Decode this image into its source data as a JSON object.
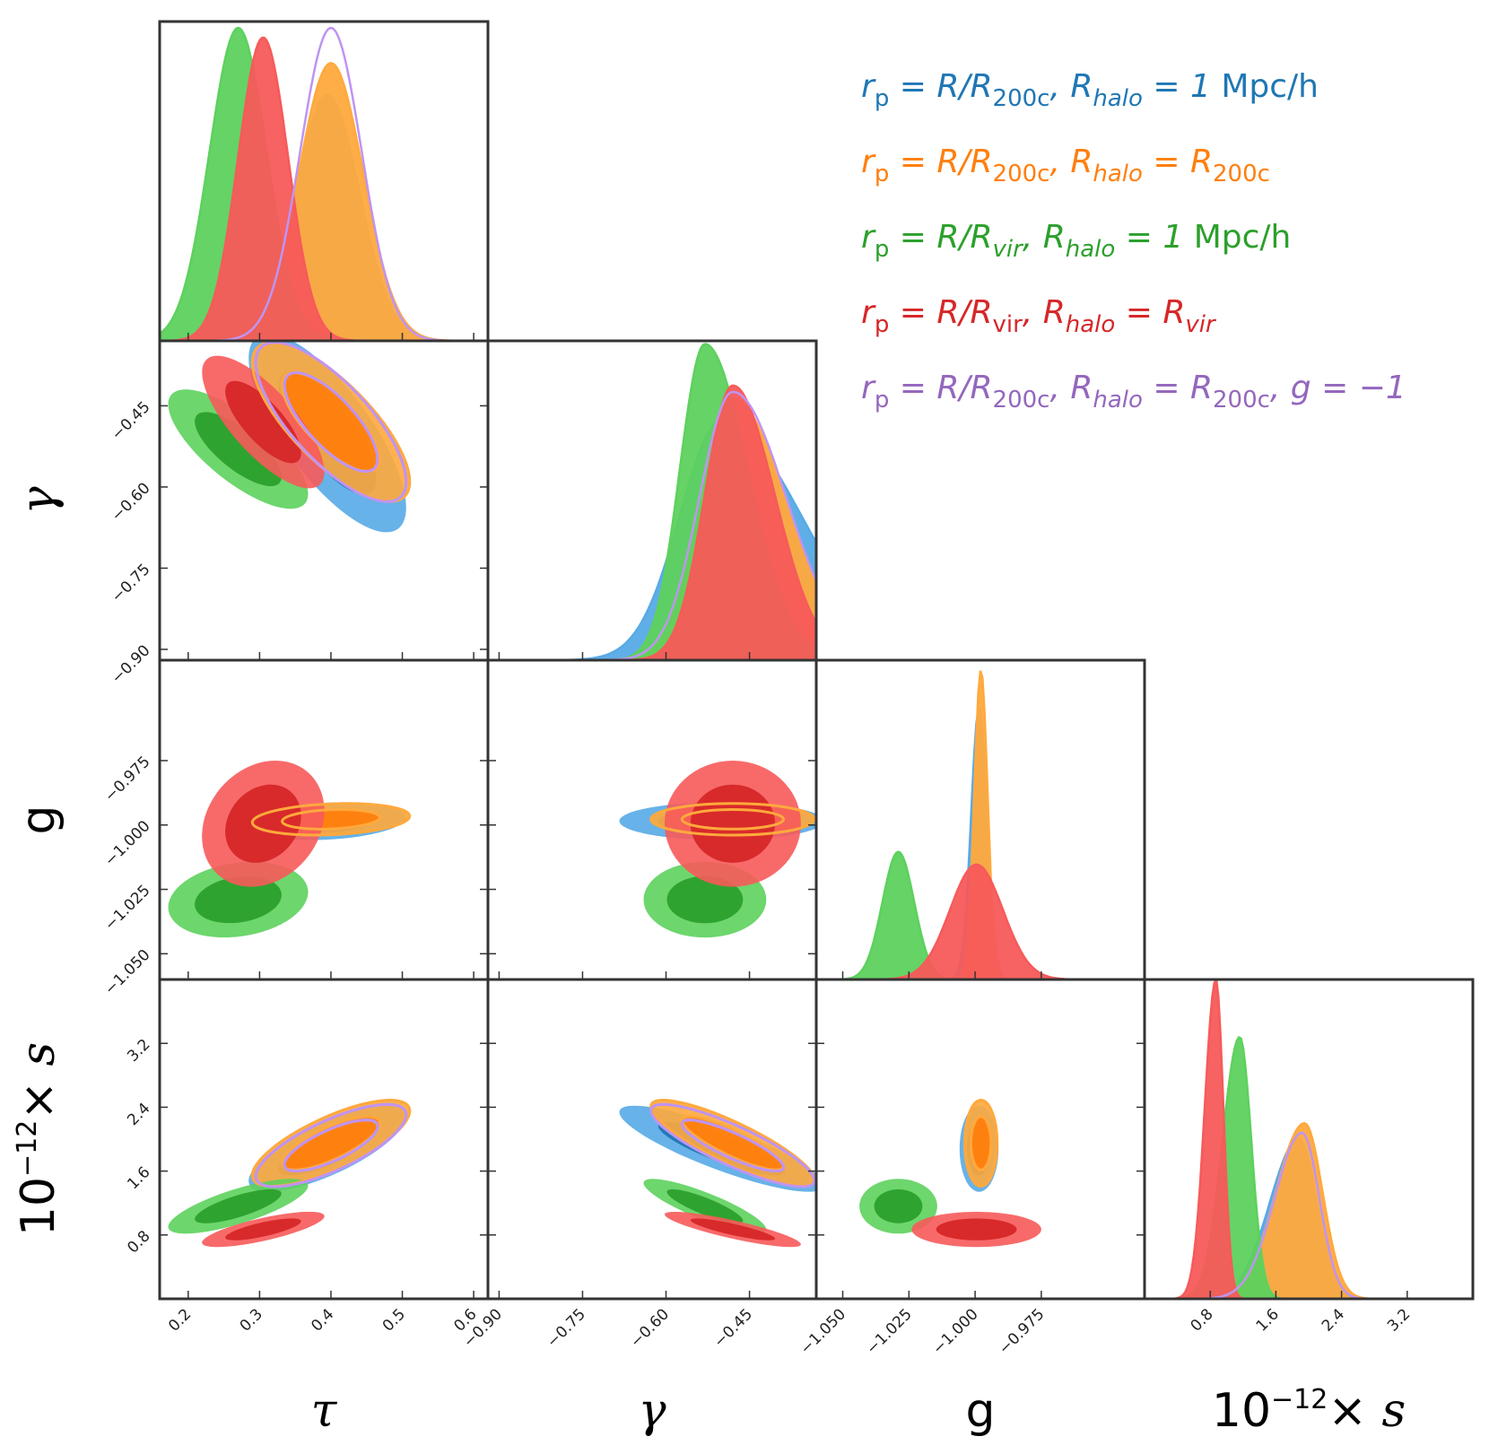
{
  "chart_data": {
    "type": "corner",
    "params": [
      {
        "key": "tau",
        "label": "τ",
        "range": [
          0.16,
          0.62
        ],
        "ticks": [
          0.2,
          0.3,
          0.4,
          0.5,
          0.6
        ],
        "tick_labels": [
          "0.2",
          "0.3",
          "0.4",
          "0.5",
          "0.6"
        ]
      },
      {
        "key": "gamma",
        "label": "γ",
        "range": [
          -0.92,
          -0.33
        ],
        "ticks": [
          -0.9,
          -0.75,
          -0.6,
          -0.45
        ],
        "tick_labels": [
          "−0.90",
          "−0.75",
          "−0.60",
          "−0.45"
        ]
      },
      {
        "key": "g",
        "label": "g",
        "range": [
          -1.06,
          -0.936
        ],
        "ticks": [
          -1.05,
          -1.025,
          -1.0,
          -0.975
        ],
        "tick_labels": [
          "−1.050",
          "−1.025",
          "−1.000",
          "−0.975"
        ]
      },
      {
        "key": "s",
        "label": "10⁻¹²× s",
        "range": [
          0.0,
          4.0
        ],
        "ticks": [
          0.8,
          1.6,
          2.4,
          3.2
        ],
        "tick_labels": [
          "0.8",
          "1.6",
          "2.4",
          "3.2"
        ]
      }
    ],
    "colors": {
      "blue": "#1f77b4",
      "orange": "#ff7f0e",
      "green": "#2ca02c",
      "red": "#d62728",
      "purple": "#9467bd"
    },
    "series": [
      {
        "id": "blue",
        "name": "r_p = R/R_200c, R_halo = 1 Mpc/h",
        "filled": true,
        "color": "#1f77b4",
        "fill": "#57aae6",
        "peak_dense": "#4ca6e2",
        "mean": {
          "tau": 0.395,
          "gamma": -0.5,
          "g": -0.9985,
          "s": 1.88
        },
        "sd": {
          "tau": 0.045,
          "gamma": 0.075,
          "g": 0.003,
          "s": 0.22
        },
        "hist_height": {
          "tau": 0.77,
          "gamma": 0.75,
          "g": 0.85,
          "s": 0.5
        },
        "hist_skew": {
          "tau": 0.0,
          "gamma": -0.9,
          "g": 0.0,
          "s": 0.6
        }
      },
      {
        "id": "orange",
        "name": "r_p = R/R_200c, R_halo = R_200c",
        "filled": true,
        "color": "#ff7f0e",
        "fill": "#ffa93d",
        "mean": {
          "tau": 0.4,
          "gamma": -0.48,
          "g": -0.9978,
          "s": 1.95
        },
        "sd": {
          "tau": 0.045,
          "gamma": 0.06,
          "g": 0.0025,
          "s": 0.22
        },
        "hist_height": {
          "tau": 0.87,
          "gamma": 0.82,
          "g": 0.97,
          "s": 0.55
        },
        "hist_skew": {
          "tau": 0.0,
          "gamma": -0.6,
          "g": 0.0,
          "s": 0.6
        }
      },
      {
        "id": "green",
        "name": "r_p = R/R_vir, R_halo = 1 Mpc/h",
        "filled": true,
        "color": "#2ca02c",
        "fill": "#5dd15d",
        "mean": {
          "tau": 0.27,
          "gamma": -0.53,
          "g": -1.029,
          "s": 1.16
        },
        "sd": {
          "tau": 0.04,
          "gamma": 0.045,
          "g": 0.006,
          "s": 0.14
        },
        "hist_height": {
          "tau": 0.98,
          "gamma": 0.99,
          "g": 0.4,
          "s": 0.82
        },
        "hist_skew": {
          "tau": 0.0,
          "gamma": -0.7,
          "g": 0.0,
          "s": 0.5
        }
      },
      {
        "id": "red",
        "name": "r_p = R/R_vir, R_halo = R_vir",
        "filled": true,
        "color": "#d62728",
        "fill": "#f75a5a",
        "mean": {
          "tau": 0.305,
          "gamma": -0.48,
          "g": -0.9995,
          "s": 0.87
        },
        "sd": {
          "tau": 0.035,
          "gamma": 0.05,
          "g": 0.01,
          "s": 0.09
        },
        "hist_height": {
          "tau": 0.95,
          "gamma": 0.86,
          "g": 0.36,
          "s": 1.0
        },
        "hist_skew": {
          "tau": 0.0,
          "gamma": -0.5,
          "g": 0.0,
          "s": 0.5
        }
      },
      {
        "id": "purple",
        "name": "r_p = R/R_200c, R_halo = R_200c, g = −1",
        "filled": false,
        "color": "#9467bd",
        "fill": "#bf94f2",
        "mean": {
          "tau": 0.4,
          "gamma": -0.48,
          "g": -1.0,
          "s": 1.92
        },
        "sd": {
          "tau": 0.043,
          "gamma": 0.06,
          "g": 0.0,
          "s": 0.21
        },
        "hist_height": {
          "tau": 0.98,
          "gamma": 0.84,
          "g": 0.0,
          "s": 0.52
        },
        "hist_skew": {
          "tau": 0.0,
          "gamma": -0.6,
          "g": 0.0,
          "s": 0.6
        }
      }
    ],
    "correlations": {
      "gamma_tau": -0.75,
      "s_tau": 0.75,
      "s_gamma": -0.85,
      "g_tau": 0.2,
      "g_gamma": 0.0,
      "s_g": 0.0
    },
    "legend": {
      "placement": "top-right",
      "entries": [
        {
          "color": "#1f77b4",
          "parts": [
            [
              "r",
              "i"
            ],
            [
              "p",
              "sub"
            ],
            [
              " = R/R",
              "i"
            ],
            [
              "200c",
              "sub"
            ],
            [
              ", R",
              "i"
            ],
            [
              "halo",
              "subi"
            ],
            [
              " = 1 ",
              "i"
            ],
            [
              "Mpc/h",
              "u"
            ]
          ]
        },
        {
          "color": "#ff7f0e",
          "parts": [
            [
              "r",
              "i"
            ],
            [
              "p",
              "sub"
            ],
            [
              " = R/R",
              "i"
            ],
            [
              "200c",
              "sub"
            ],
            [
              ", R",
              "i"
            ],
            [
              "halo",
              "subi"
            ],
            [
              " = R",
              "i"
            ],
            [
              "200c",
              "sub"
            ]
          ]
        },
        {
          "color": "#2ca02c",
          "parts": [
            [
              "r",
              "i"
            ],
            [
              "p",
              "sub"
            ],
            [
              " = R/R",
              "i"
            ],
            [
              "vir",
              "subi"
            ],
            [
              ", R",
              "i"
            ],
            [
              "halo",
              "subi"
            ],
            [
              " = 1 ",
              "i"
            ],
            [
              "Mpc/h",
              "u"
            ]
          ]
        },
        {
          "color": "#d62728",
          "parts": [
            [
              "r",
              "i"
            ],
            [
              "p",
              "sub"
            ],
            [
              " = R/R",
              "i"
            ],
            [
              "vir",
              "sub"
            ],
            [
              ", R",
              "i"
            ],
            [
              "halo",
              "subi"
            ],
            [
              " = R",
              "i"
            ],
            [
              "vir",
              "subi"
            ]
          ]
        },
        {
          "color": "#9467bd",
          "parts": [
            [
              "r",
              "i"
            ],
            [
              "p",
              "sub"
            ],
            [
              " = R/R",
              "i"
            ],
            [
              "200c",
              "sub"
            ],
            [
              ", R",
              "i"
            ],
            [
              "halo",
              "subi"
            ],
            [
              " = R",
              "i"
            ],
            [
              "200c",
              "sub"
            ],
            [
              ", g = −1",
              "i"
            ]
          ]
        }
      ]
    },
    "axis_labels": {
      "x": [
        "τ",
        "γ",
        "g",
        "10⁻¹²× s"
      ],
      "y": [
        "γ",
        "g",
        "10⁻¹²× s"
      ]
    }
  }
}
